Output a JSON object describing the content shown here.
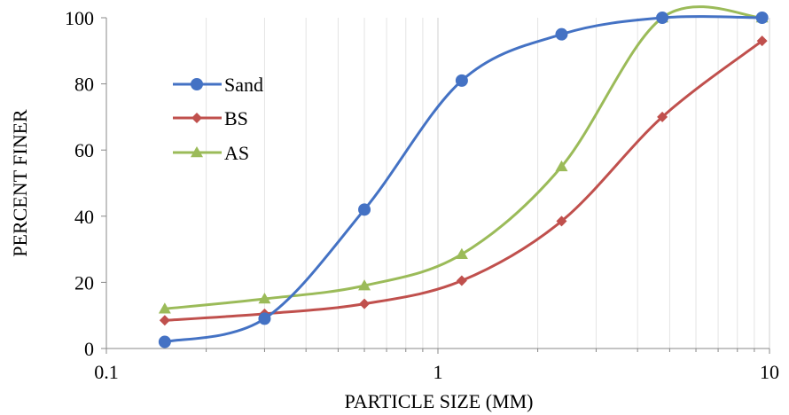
{
  "chart_data": {
    "type": "line",
    "title": "",
    "xlabel": "PARTICLE SIZE (MM)",
    "ylabel": "PERCENT FINER",
    "xscale": "log",
    "xlim": [
      0.1,
      10
    ],
    "ylim": [
      0,
      100
    ],
    "x_tick_labels": [
      "0.1",
      "1",
      "10"
    ],
    "y_tick_labels": [
      "0",
      "20",
      "40",
      "60",
      "80",
      "100"
    ],
    "grid": "vertical major and minor gridlines",
    "legend_position": "upper-left inside plot",
    "series": [
      {
        "name": "Sand",
        "color": "#4472C4",
        "marker": "circle",
        "x": [
          0.15,
          0.3,
          0.6,
          1.18,
          2.36,
          4.75,
          9.5
        ],
        "y": [
          2,
          9,
          42,
          81,
          95,
          100,
          100
        ]
      },
      {
        "name": "BS",
        "color": "#C0504D",
        "marker": "diamond",
        "x": [
          0.15,
          0.3,
          0.6,
          1.18,
          2.36,
          4.75,
          9.5
        ],
        "y": [
          8.5,
          10.5,
          13.5,
          20.5,
          38.5,
          70,
          93
        ]
      },
      {
        "name": "AS",
        "color": "#9BBB59",
        "marker": "triangle",
        "x": [
          0.15,
          0.3,
          0.6,
          1.18,
          2.36,
          4.75,
          9.5
        ],
        "y": [
          12,
          15,
          19,
          28.5,
          55,
          100,
          100
        ]
      }
    ]
  }
}
